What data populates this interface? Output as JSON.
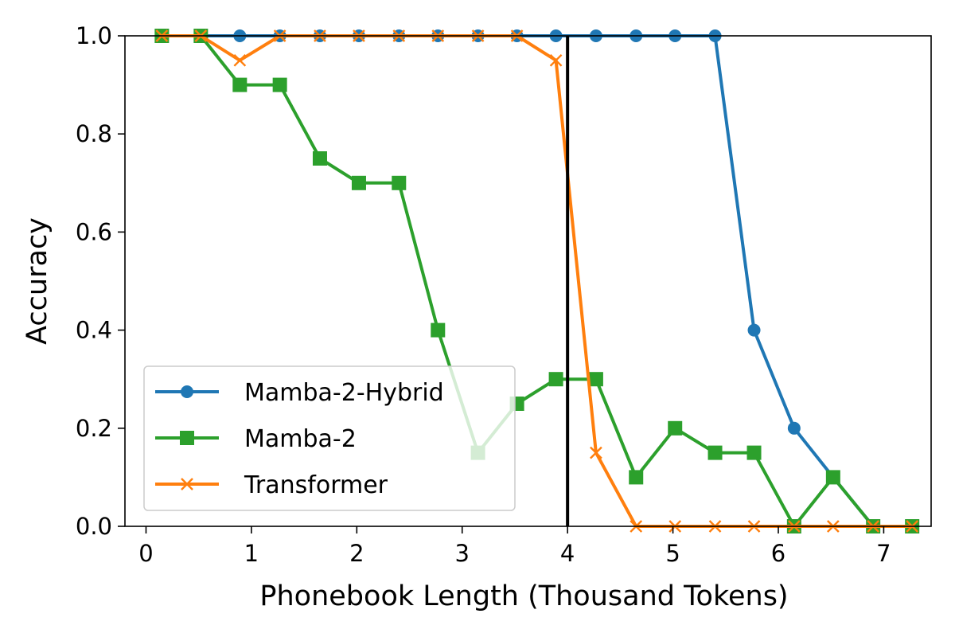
{
  "chart_data": {
    "type": "line",
    "title": "",
    "xlabel": "Phonebook Length (Thousand Tokens)",
    "ylabel": "Accuracy",
    "xlim": [
      -0.2,
      7.45
    ],
    "ylim": [
      0.0,
      1.0
    ],
    "xticks": [
      "0",
      "1",
      "2",
      "3",
      "4",
      "5",
      "6",
      "7"
    ],
    "yticks": [
      "0.0",
      "0.2",
      "0.4",
      "0.6",
      "0.8",
      "1.0"
    ],
    "grid": false,
    "legend_position": "lower-left",
    "reference_line": {
      "x": 4.0,
      "color": "#000000"
    },
    "x": [
      0.15,
      0.52,
      0.89,
      1.27,
      1.65,
      2.02,
      2.4,
      2.77,
      3.15,
      3.52,
      3.89,
      4.27,
      4.65,
      5.02,
      5.4,
      5.77,
      6.15,
      6.52,
      6.9,
      7.27
    ],
    "series": [
      {
        "name": "Mamba-2-Hybrid",
        "color": "#1f77b4",
        "marker": "circle",
        "values": [
          1.0,
          1.0,
          1.0,
          1.0,
          1.0,
          1.0,
          1.0,
          1.0,
          1.0,
          1.0,
          1.0,
          1.0,
          1.0,
          1.0,
          1.0,
          0.4,
          0.2,
          0.1,
          0.0,
          0.0
        ]
      },
      {
        "name": "Mamba-2",
        "color": "#2ca02c",
        "marker": "square",
        "values": [
          1.0,
          1.0,
          0.9,
          0.9,
          0.75,
          0.7,
          0.7,
          0.4,
          0.15,
          0.25,
          0.3,
          0.3,
          0.1,
          0.2,
          0.15,
          0.15,
          0.0,
          0.1,
          0.0,
          0.0
        ]
      },
      {
        "name": "Transformer",
        "color": "#ff7f0e",
        "marker": "x",
        "values": [
          1.0,
          1.0,
          0.95,
          1.0,
          1.0,
          1.0,
          1.0,
          1.0,
          1.0,
          1.0,
          0.95,
          0.15,
          0.0,
          0.0,
          0.0,
          0.0,
          0.0,
          0.0,
          0.0,
          0.0
        ]
      }
    ]
  }
}
